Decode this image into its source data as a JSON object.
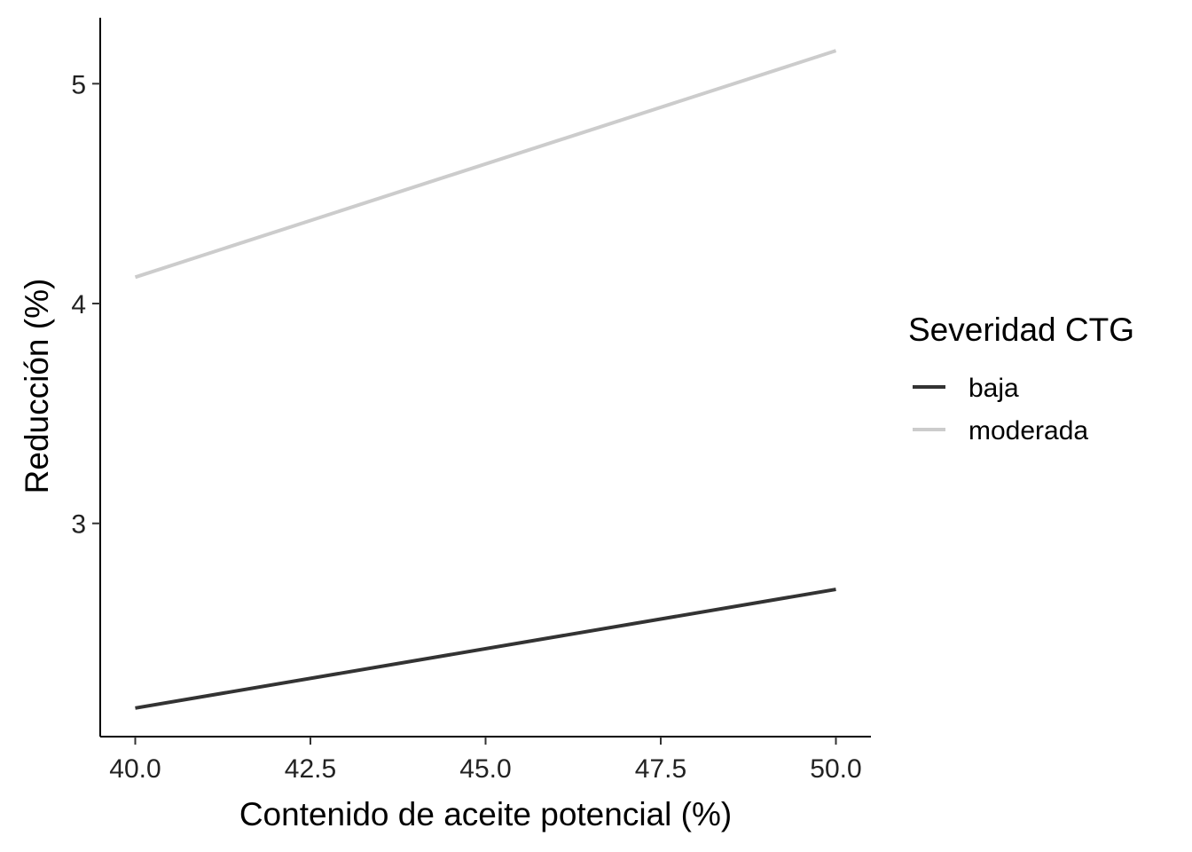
{
  "chart_data": {
    "type": "line",
    "title": "",
    "xlabel": "Contenido de aceite potencial (%)",
    "ylabel": "Reducción (%)",
    "xlim": [
      39.5,
      50.5
    ],
    "ylim": [
      2.03,
      5.3
    ],
    "x_ticks": [
      40.0,
      42.5,
      45.0,
      47.5,
      50.0
    ],
    "x_tick_labels": [
      "40.0",
      "42.5",
      "45.0",
      "47.5",
      "50.0"
    ],
    "y_ticks": [
      3,
      4,
      5
    ],
    "y_tick_labels": [
      "3",
      "4",
      "5"
    ],
    "grid": false,
    "legend": {
      "title": "Severidad CTG",
      "position": "right"
    },
    "series": [
      {
        "name": "baja",
        "color": "#333333",
        "x": [
          40.0,
          50.0
        ],
        "y": [
          2.16,
          2.7
        ]
      },
      {
        "name": "moderada",
        "color": "#cccccc",
        "x": [
          40.0,
          50.0
        ],
        "y": [
          4.12,
          5.15
        ]
      }
    ]
  }
}
